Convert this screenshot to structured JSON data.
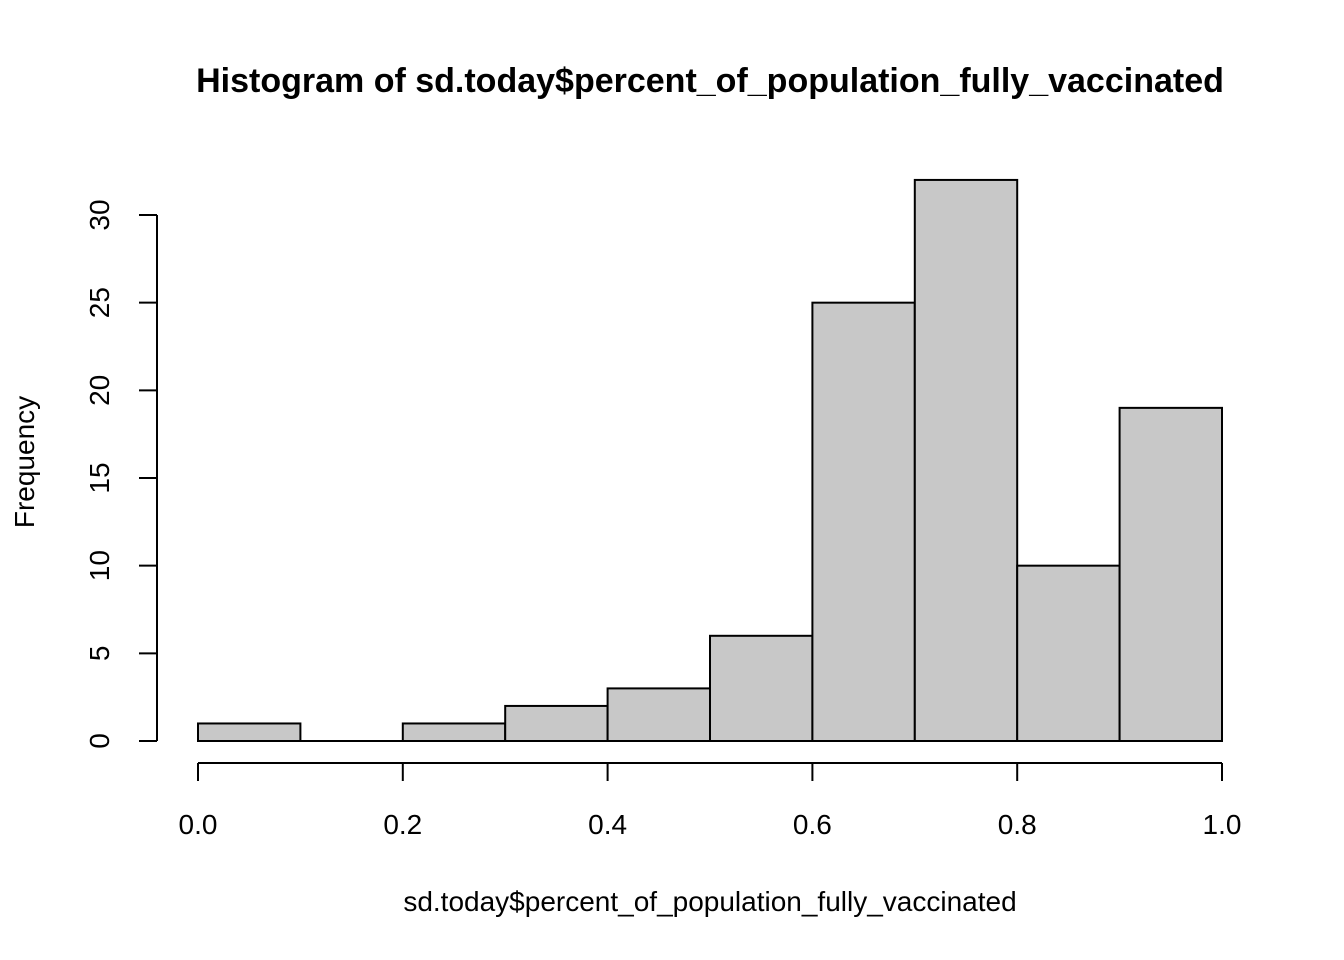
{
  "chart_data": {
    "type": "bar",
    "subtype": "histogram",
    "title": "Histogram of sd.today$percent_of_population_fully_vaccinated",
    "xlabel": "sd.today$percent_of_population_fully_vaccinated",
    "ylabel": "Frequency",
    "bins": [
      {
        "start": 0.0,
        "end": 0.1,
        "count": 1
      },
      {
        "start": 0.1,
        "end": 0.2,
        "count": 0
      },
      {
        "start": 0.2,
        "end": 0.3,
        "count": 1
      },
      {
        "start": 0.3,
        "end": 0.4,
        "count": 2
      },
      {
        "start": 0.4,
        "end": 0.5,
        "count": 3
      },
      {
        "start": 0.5,
        "end": 0.6,
        "count": 6
      },
      {
        "start": 0.6,
        "end": 0.7,
        "count": 25
      },
      {
        "start": 0.7,
        "end": 0.8,
        "count": 32
      },
      {
        "start": 0.8,
        "end": 0.9,
        "count": 10
      },
      {
        "start": 0.9,
        "end": 1.0,
        "count": 19
      }
    ],
    "xlim": [
      0.0,
      1.0
    ],
    "ylim": [
      0,
      32
    ],
    "x_ticks": [
      0.0,
      0.2,
      0.4,
      0.6,
      0.8,
      1.0
    ],
    "x_tick_labels": [
      "0.0",
      "0.2",
      "0.4",
      "0.6",
      "0.8",
      "1.0"
    ],
    "y_ticks": [
      0,
      5,
      10,
      15,
      20,
      25,
      30
    ],
    "y_tick_labels": [
      "0",
      "5",
      "10",
      "15",
      "20",
      "25",
      "30"
    ],
    "grid": false,
    "colors": {
      "bar_fill": "#c8c8c8",
      "bar_stroke": "#000000"
    }
  }
}
